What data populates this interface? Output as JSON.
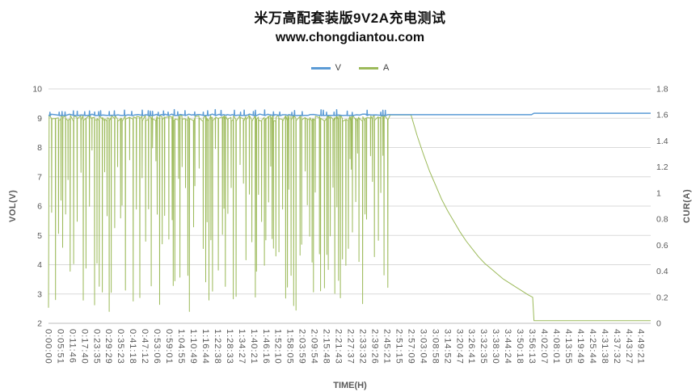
{
  "chart_data": {
    "type": "line",
    "title": "米万高配套装版9V2A充电测试",
    "subtitle": "www.chongdiantou.com",
    "xlabel": "TIME(H)",
    "ylabel_left": "VOL(V)",
    "ylabel_right": "CUR(A)",
    "grid": "horizontal",
    "legend_position": "top",
    "legend": [
      {
        "label": "V",
        "color": "#5B9BD5"
      },
      {
        "label": "A",
        "color": "#9CBA5A"
      }
    ],
    "axes": {
      "y_left": {
        "min": 2,
        "max": 10,
        "step": 1
      },
      "y_right": {
        "min": 0,
        "max": 1.8,
        "step": 0.2
      },
      "x_hours": {
        "min": 0,
        "max": 4.9
      }
    },
    "x_tick_labels": [
      "0:00:00",
      "0:05:51",
      "0:11:46",
      "0:17:40",
      "0:23:35",
      "0:29:29",
      "0:35:23",
      "0:41:18",
      "0:47:12",
      "0:53:06",
      "0:59:01",
      "1:04:55",
      "1:10:49",
      "1:16:44",
      "1:22:38",
      "1:28:33",
      "1:34:27",
      "1:40:21",
      "1:46:16",
      "1:52:10",
      "1:58:05",
      "2:03:59",
      "2:09:54",
      "2:15:48",
      "2:21:43",
      "2:27:37",
      "2:33:32",
      "2:39:26",
      "2:45:21",
      "2:51:15",
      "2:57:09",
      "3:03:04",
      "3:08:58",
      "3:14:52",
      "3:20:47",
      "3:26:41",
      "3:32:35",
      "3:38:30",
      "3:44:24",
      "3:50:18",
      "3:56:13",
      "4:02:07",
      "4:08:01",
      "4:13:55",
      "4:19:49",
      "4:25:44",
      "4:31:38",
      "4:37:32",
      "4:43:27",
      "4:49:21"
    ],
    "seed": 11,
    "series": [
      {
        "name": "V",
        "axis": "left",
        "color": "#5B9BD5",
        "summary": "Voltage holds ~9.1V for the whole test, small spikes to ~9.3V during the pulsing phase, ends ~9.17V",
        "noise_phase": {
          "t_start": 0,
          "t_end": 2.76,
          "base": 9.09,
          "spike_min": 9.2,
          "spike_max": 9.3,
          "spike_prob": 0.45
        },
        "keypoints": [
          [
            2.76,
            9.12
          ],
          [
            3.93,
            9.12
          ],
          [
            3.95,
            9.17
          ],
          [
            4.9,
            9.17
          ]
        ]
      },
      {
        "name": "A",
        "axis": "right",
        "color": "#9CBA5A",
        "summary": "Current pulses between ~0.1A and ~1.6A until ~2:45, holds ~1.6A until ~2:57, decays to ~0.2A by ~3:56, then drops to ~0.02A to the end",
        "start_point": [
          0,
          0.12
        ],
        "oscillation": {
          "t_start": 0.005,
          "t_end": 2.76,
          "high": 1.6,
          "low_min": 0.08,
          "low_max": 1.35
        },
        "keypoints": [
          [
            2.78,
            1.6
          ],
          [
            2.95,
            1.6
          ],
          [
            3.0,
            1.44
          ],
          [
            3.05,
            1.3
          ],
          [
            3.1,
            1.17
          ],
          [
            3.15,
            1.06
          ],
          [
            3.2,
            0.95
          ],
          [
            3.25,
            0.86
          ],
          [
            3.3,
            0.78
          ],
          [
            3.35,
            0.7
          ],
          [
            3.4,
            0.63
          ],
          [
            3.45,
            0.57
          ],
          [
            3.5,
            0.51
          ],
          [
            3.55,
            0.46
          ],
          [
            3.6,
            0.42
          ],
          [
            3.65,
            0.38
          ],
          [
            3.7,
            0.34
          ],
          [
            3.75,
            0.31
          ],
          [
            3.8,
            0.28
          ],
          [
            3.85,
            0.25
          ],
          [
            3.9,
            0.22
          ],
          [
            3.94,
            0.2
          ],
          [
            3.95,
            0.02
          ],
          [
            4.9,
            0.02
          ]
        ]
      }
    ]
  }
}
